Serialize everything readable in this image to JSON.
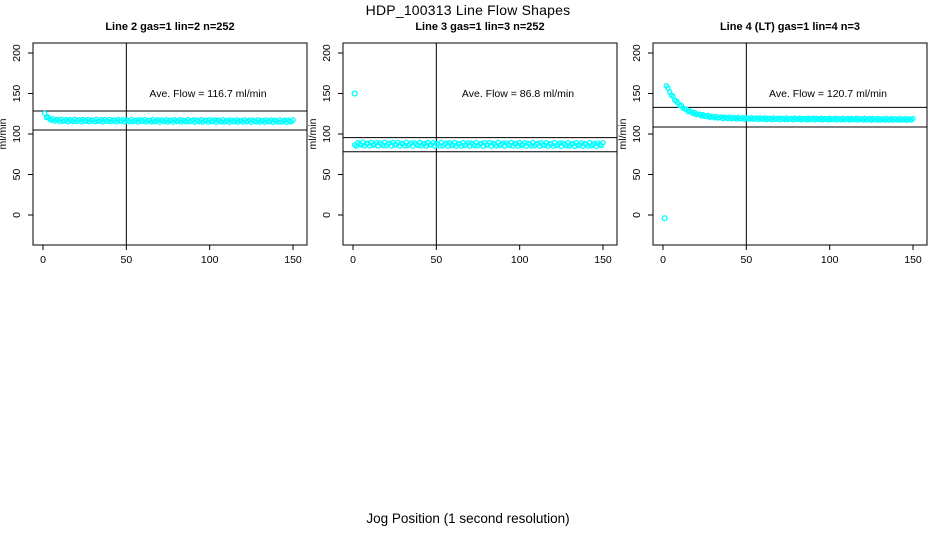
{
  "title": "HDP_100313  Line Flow Shapes",
  "xlabel": "Jog Position (1 second resolution)",
  "colors": {
    "points": "#00FFFF",
    "lines": "#000000",
    "background": "#ffffff"
  },
  "chart_data": {
    "type": "scatter",
    "layout": "3 panels side by side, shared axes",
    "x_ticks": [
      "0",
      "50",
      "100",
      "150"
    ],
    "y_ticks": [
      "0",
      "50",
      "100",
      "150",
      "200"
    ],
    "xlim": [
      -6,
      158
    ],
    "ylim": [
      -37,
      212
    ],
    "grid": false,
    "ylabel": "ml/min",
    "panels": [
      {
        "title": "Line 2 gas=1 lin=2 n=252",
        "annotation": "Ave. Flow =  116.7  ml/min",
        "ave_flow": 116.7,
        "n": 252,
        "ref_lines": [
          128.4,
          105.0
        ],
        "vline_x": 50,
        "band_halfwidth": 1.7,
        "profile_points": [
          [
            1,
            124.5
          ],
          [
            2,
            122.0
          ],
          [
            3,
            119.8
          ],
          [
            4,
            118.6
          ],
          [
            5,
            117.9
          ],
          [
            6,
            117.4
          ],
          [
            8,
            117.0
          ],
          [
            10,
            116.8
          ],
          [
            15,
            116.6
          ],
          [
            25,
            116.5
          ],
          [
            50,
            116.4
          ],
          [
            75,
            116.2
          ],
          [
            100,
            116.1
          ],
          [
            125,
            116.0
          ],
          [
            150,
            115.9
          ]
        ],
        "outliers": []
      },
      {
        "title": "Line 3 gas=1 lin=3 n=252",
        "annotation": "Ave. Flow =  86.8  ml/min",
        "ave_flow": 86.8,
        "n": 252,
        "ref_lines": [
          95.5,
          78.1
        ],
        "vline_x": 50,
        "band_halfwidth": 2.6,
        "profile_points": [
          [
            1,
            85.0
          ],
          [
            2,
            87.4
          ],
          [
            3,
            87.6
          ],
          [
            10,
            87.5
          ],
          [
            30,
            87.4
          ],
          [
            60,
            87.2
          ],
          [
            90,
            87.3
          ],
          [
            120,
            87.1
          ],
          [
            150,
            87.0
          ]
        ],
        "outliers": [
          [
            1,
            150
          ]
        ]
      },
      {
        "title": "Line 4 (LT) gas=1 lin=4 n=3",
        "annotation": "Ave. Flow =  120.7  ml/min",
        "ave_flow": 120.7,
        "n": 3,
        "ref_lines": [
          132.8,
          108.6
        ],
        "vline_x": 50,
        "band_halfwidth": 1.2,
        "profile_points": [
          [
            2,
            160.5
          ],
          [
            3,
            156
          ],
          [
            4,
            152
          ],
          [
            5,
            148.5
          ],
          [
            6,
            145.5
          ],
          [
            7,
            142.8
          ],
          [
            8,
            140.3
          ],
          [
            9,
            138
          ],
          [
            10,
            136
          ],
          [
            11,
            134.2
          ],
          [
            12,
            132.6
          ],
          [
            13,
            131.2
          ],
          [
            14,
            129.9
          ],
          [
            15,
            128.8
          ],
          [
            16,
            127.8
          ],
          [
            17,
            126.9
          ],
          [
            18,
            126.1
          ],
          [
            19,
            125.4
          ],
          [
            20,
            124.8
          ],
          [
            22,
            123.7
          ],
          [
            24,
            122.8
          ],
          [
            26,
            122.1
          ],
          [
            28,
            121.5
          ],
          [
            30,
            121.0
          ],
          [
            35,
            120.2
          ],
          [
            40,
            119.7
          ],
          [
            50,
            119.2
          ],
          [
            60,
            118.9
          ],
          [
            70,
            118.7
          ],
          [
            80,
            118.6
          ],
          [
            90,
            118.5
          ],
          [
            100,
            118.4
          ],
          [
            110,
            118.3
          ],
          [
            120,
            118.2
          ],
          [
            135,
            118.1
          ],
          [
            150,
            118.0
          ]
        ],
        "outliers": [
          [
            1,
            -4
          ]
        ]
      }
    ]
  }
}
